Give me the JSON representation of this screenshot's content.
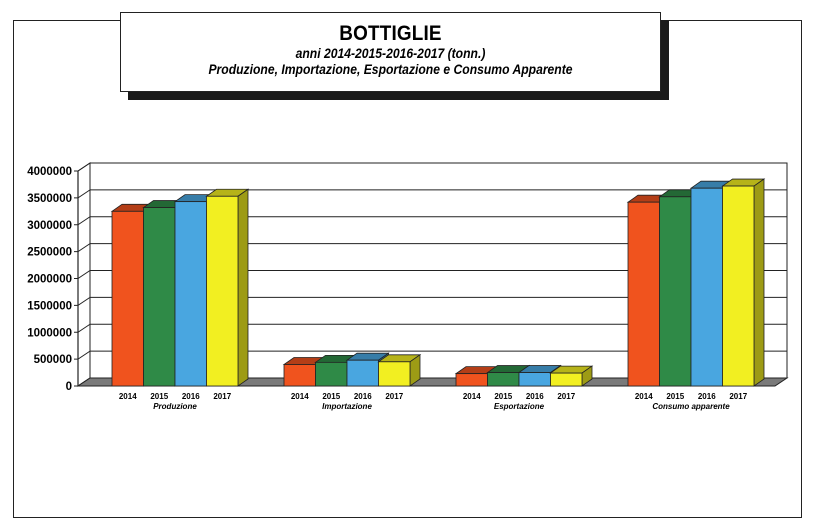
{
  "title": "BOTTIGLIE",
  "subtitle1": "anni 2014-2015-2016-2017 (tonn.)",
  "subtitle2": "Produzione, Importazione, Esportazione e Consumo Apparente",
  "colors": {
    "2014": "#f0531e",
    "2015": "#2f8a47",
    "2016": "#49a6e0",
    "2017": "#f2ef21",
    "floor": "#7a7a7a",
    "wall": "#ffffff"
  },
  "chart_data": {
    "type": "bar",
    "title": "BOTTIGLIE",
    "categories": [
      "Produzione",
      "Importazione",
      "Esportazione",
      "Consumo apparente"
    ],
    "series": [
      {
        "name": "2014",
        "values": [
          3250000,
          400000,
          230000,
          3420000
        ]
      },
      {
        "name": "2015",
        "values": [
          3320000,
          440000,
          250000,
          3520000
        ]
      },
      {
        "name": "2016",
        "values": [
          3430000,
          480000,
          250000,
          3680000
        ]
      },
      {
        "name": "2017",
        "values": [
          3530000,
          450000,
          240000,
          3720000
        ]
      }
    ],
    "yticks": [
      "0",
      "500000",
      "1000000",
      "1500000",
      "2000000",
      "2500000",
      "3000000",
      "3500000",
      "4000000"
    ],
    "ylim": [
      0,
      4000000
    ],
    "grid": true,
    "style": "3d"
  }
}
